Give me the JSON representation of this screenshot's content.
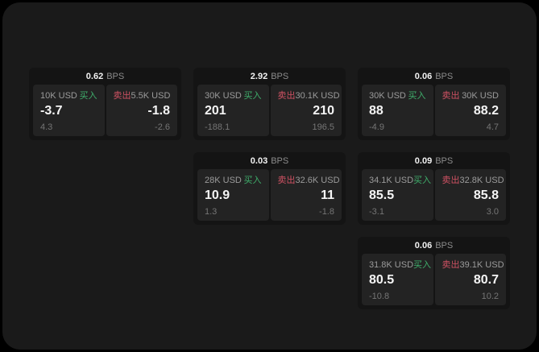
{
  "labels": {
    "bps": "BPS",
    "buy": "买入",
    "sell": "卖出"
  },
  "colors": {
    "buy_green": "#3fae6b",
    "sell_red": "#cf5263",
    "panel_bg": "#1a1a1a",
    "card_bg": "#141414",
    "cell_bg": "#232323"
  },
  "cards": [
    {
      "bps": "0.62",
      "buy": {
        "size": "10K USD",
        "price": "-3.7",
        "delta": "4.3"
      },
      "sell": {
        "size": "5.5K USD",
        "price": "-1.8",
        "delta": "-2.6"
      }
    },
    {
      "bps": "2.92",
      "buy": {
        "size": "30K USD",
        "price": "201",
        "delta": "-188.1"
      },
      "sell": {
        "size": "30.1K USD",
        "price": "210",
        "delta": "196.5"
      }
    },
    {
      "bps": "0.06",
      "buy": {
        "size": "30K USD",
        "price": "88",
        "delta": "-4.9"
      },
      "sell": {
        "size": "30K USD",
        "price": "88.2",
        "delta": "4.7"
      }
    },
    {
      "bps": "0.03",
      "buy": {
        "size": "28K USD",
        "price": "10.9",
        "delta": "1.3"
      },
      "sell": {
        "size": "32.6K USD",
        "price": "11",
        "delta": "-1.8"
      }
    },
    {
      "bps": "0.09",
      "buy": {
        "size": "34.1K USD",
        "price": "85.5",
        "delta": "-3.1"
      },
      "sell": {
        "size": "32.8K USD",
        "price": "85.8",
        "delta": "3.0"
      }
    },
    {
      "bps": "0.06",
      "buy": {
        "size": "31.8K USD",
        "price": "80.5",
        "delta": "-10.8"
      },
      "sell": {
        "size": "39.1K USD",
        "price": "80.7",
        "delta": "10.2"
      }
    }
  ]
}
